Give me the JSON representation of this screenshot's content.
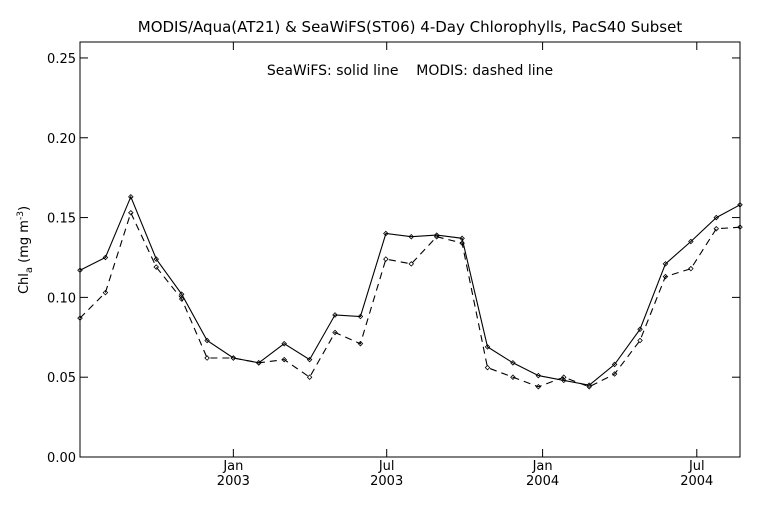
{
  "chart_data": {
    "type": "line",
    "title": "MODIS/Aqua(AT21) & SeaWiFS(ST06) 4-Day Chlorophylls, PacS40 Subset",
    "annotation": "SeaWiFS: solid line    MODIS: dashed line",
    "ylabel": {
      "main": "Chl",
      "sub": "a",
      "unit_open": " (mg m",
      "unit_sup": "-3",
      "unit_close": ")"
    },
    "ylim": [
      0.0,
      0.26
    ],
    "yticks": [
      0.0,
      0.05,
      0.1,
      0.15,
      0.2,
      0.25
    ],
    "ytick_labels": [
      "0.00",
      "0.05",
      "0.10",
      "0.15",
      "0.20",
      "0.25"
    ],
    "xlim": [
      "2002-07-04",
      "2004-08-21"
    ],
    "xticks": [
      {
        "date": "2003-01-01",
        "line1": "Jan",
        "line2": "2003"
      },
      {
        "date": "2003-07-01",
        "line1": "Jul",
        "line2": "2003"
      },
      {
        "date": "2004-01-01",
        "line1": "Jan",
        "line2": "2004"
      },
      {
        "date": "2004-07-01",
        "line1": "Jul",
        "line2": "2004"
      }
    ],
    "grid": false,
    "series": [
      {
        "style": "solid",
        "x": [
          "2002-07-04",
          "2002-08-03",
          "2002-09-02",
          "2002-10-02",
          "2002-11-01",
          "2002-12-01",
          "2003-01-01",
          "2003-01-31",
          "2003-03-02",
          "2003-04-01",
          "2003-05-01",
          "2003-05-31",
          "2003-06-30",
          "2003-07-30",
          "2003-08-29",
          "2003-09-28",
          "2003-10-28",
          "2003-11-27",
          "2003-12-27",
          "2004-01-26",
          "2004-02-25",
          "2004-03-26",
          "2004-04-25",
          "2004-05-25",
          "2004-06-24",
          "2004-07-24",
          "2004-08-21"
        ],
        "values": [
          0.117,
          0.125,
          0.163,
          0.124,
          0.102,
          0.073,
          0.062,
          0.059,
          0.071,
          0.061,
          0.089,
          0.088,
          0.14,
          0.138,
          0.139,
          0.137,
          0.069,
          0.059,
          0.051,
          0.048,
          0.045,
          0.058,
          0.08,
          0.121,
          0.135,
          0.15,
          0.158
        ]
      },
      {
        "style": "dashed",
        "x": [
          "2002-07-04",
          "2002-08-03",
          "2002-09-02",
          "2002-10-02",
          "2002-11-01",
          "2002-12-01",
          "2003-01-01",
          "2003-01-31",
          "2003-03-02",
          "2003-04-01",
          "2003-05-01",
          "2003-05-31",
          "2003-06-30",
          "2003-07-30",
          "2003-08-29",
          "2003-09-28",
          "2003-10-28",
          "2003-11-27",
          "2003-12-27",
          "2004-01-26",
          "2004-02-25",
          "2004-03-26",
          "2004-04-25",
          "2004-05-25",
          "2004-06-24",
          "2004-07-24",
          "2004-08-21"
        ],
        "values": [
          0.087,
          0.103,
          0.153,
          0.119,
          0.099,
          0.062,
          0.062,
          0.059,
          0.061,
          0.05,
          0.078,
          0.071,
          0.124,
          0.121,
          0.138,
          0.134,
          0.056,
          0.05,
          0.044,
          0.05,
          0.044,
          0.052,
          0.073,
          0.113,
          0.118,
          0.143,
          0.144
        ]
      }
    ]
  }
}
